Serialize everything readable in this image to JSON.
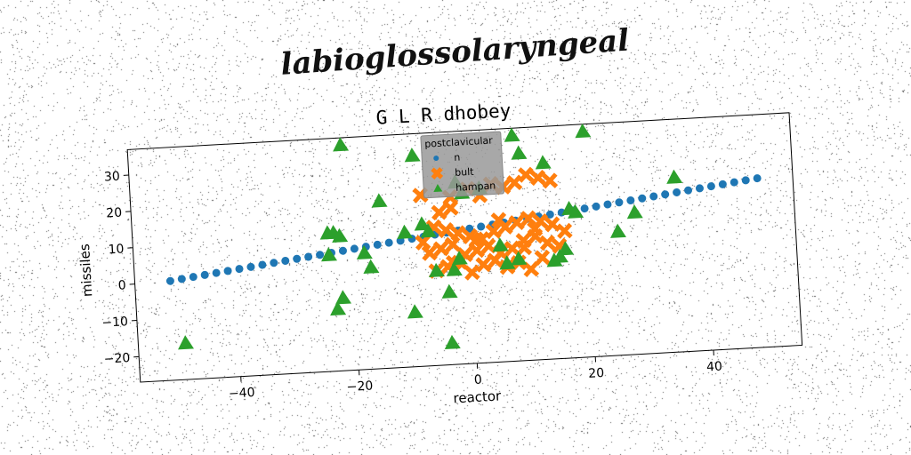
{
  "suptitle": "labioglossolaryngeal",
  "chart_data": {
    "type": "scatter",
    "title": "G L R dhobey",
    "xlabel": "reactor",
    "ylabel": "missiles",
    "xlim": [
      -57,
      55
    ],
    "ylim": [
      -27,
      37
    ],
    "xticks": [
      -40,
      -20,
      0,
      20,
      40
    ],
    "yticks": [
      -20,
      -10,
      0,
      10,
      20,
      30
    ],
    "legend": {
      "title": "postclavicular",
      "placement": "top-center"
    },
    "series": [
      {
        "name": "n",
        "marker": "circle",
        "color": "#1f77b4",
        "line": {
          "x0": -51,
          "y0": 0.3,
          "x1": 49,
          "y1": 19.5,
          "count": 52
        }
      },
      {
        "name": "bult",
        "marker": "x",
        "color": "#ff7f0e",
        "points": [
          [
            -8,
            20
          ],
          [
            -3,
            16
          ],
          [
            -5,
            15
          ],
          [
            -3,
            19
          ],
          [
            0,
            21
          ],
          [
            2,
            19
          ],
          [
            4,
            22
          ],
          [
            6,
            21
          ],
          [
            8,
            22
          ],
          [
            10,
            24
          ],
          [
            12,
            23
          ],
          [
            14,
            22
          ],
          [
            -6,
            11
          ],
          [
            -4,
            10
          ],
          [
            -2,
            9
          ],
          [
            0,
            8
          ],
          [
            2,
            7
          ],
          [
            4,
            9
          ],
          [
            6,
            10
          ],
          [
            8,
            11
          ],
          [
            10,
            12
          ],
          [
            12,
            11
          ],
          [
            14,
            10
          ],
          [
            16,
            8
          ],
          [
            -7,
            4
          ],
          [
            -5,
            5
          ],
          [
            -3,
            6
          ],
          [
            -1,
            3
          ],
          [
            1,
            4
          ],
          [
            3,
            5
          ],
          [
            5,
            3
          ],
          [
            7,
            4
          ],
          [
            9,
            6
          ],
          [
            11,
            7
          ],
          [
            13,
            5
          ],
          [
            15,
            4
          ],
          [
            -6,
            -1
          ],
          [
            -4,
            0
          ],
          [
            -2,
            1
          ],
          [
            0,
            -2
          ],
          [
            2,
            0
          ],
          [
            4,
            1
          ],
          [
            6,
            -1
          ],
          [
            8,
            0
          ],
          [
            10,
            -2
          ],
          [
            12,
            1
          ],
          [
            -8,
            7
          ],
          [
            -3,
            1
          ],
          [
            1,
            7
          ],
          [
            5,
            12
          ],
          [
            9,
            4
          ],
          [
            11,
            9
          ]
        ]
      },
      {
        "name": "hampan",
        "marker": "triangle",
        "color": "#2ca02c",
        "points": [
          [
            -49,
            -17
          ],
          [
            -21,
            35
          ],
          [
            -24,
            11
          ],
          [
            -23,
            11
          ],
          [
            -22,
            10
          ],
          [
            -24,
            5
          ],
          [
            -23,
            -10
          ],
          [
            -22,
            -7
          ],
          [
            -18,
            5
          ],
          [
            -17,
            1
          ],
          [
            -15,
            19
          ],
          [
            -11,
            10
          ],
          [
            -10,
            -12
          ],
          [
            -9,
            31
          ],
          [
            -8,
            12
          ],
          [
            -7,
            10
          ],
          [
            -6,
            -1
          ],
          [
            -4,
            -7
          ],
          [
            -4,
            -21
          ],
          [
            -3,
            -1
          ],
          [
            -2,
            2
          ],
          [
            -1,
            20
          ],
          [
            2,
            21
          ],
          [
            5,
            5
          ],
          [
            6,
            0
          ],
          [
            8,
            1
          ],
          [
            8,
            35
          ],
          [
            9,
            30
          ],
          [
            13,
            27
          ],
          [
            14,
            0
          ],
          [
            15,
            1
          ],
          [
            16,
            3
          ],
          [
            17,
            14
          ],
          [
            18,
            13
          ],
          [
            20,
            35
          ],
          [
            25,
            7
          ],
          [
            28,
            12
          ],
          [
            35,
            21
          ],
          [
            -2,
            23
          ]
        ]
      }
    ]
  }
}
